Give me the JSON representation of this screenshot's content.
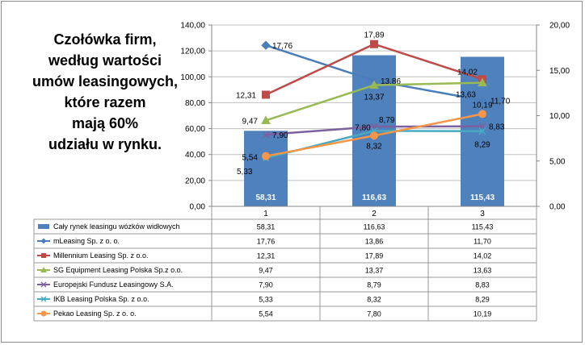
{
  "title_lines": [
    "Czołówka  firm,",
    "według wartości",
    "umów leasingowych,",
    "które razem",
    "mają 60%",
    "udziału w rynku."
  ],
  "chart_data": {
    "type": "bar",
    "categories": [
      "1",
      "2",
      "3"
    ],
    "y_left": {
      "ylim": [
        0,
        140
      ],
      "ticks": [
        "0,00",
        "20,00",
        "40,00",
        "60,00",
        "80,00",
        "100,00",
        "120,00",
        "140,00"
      ]
    },
    "y_right": {
      "ylim": [
        0,
        20
      ],
      "ticks": [
        "0,00",
        "5,00",
        "10,00",
        "15,00",
        "20,00"
      ]
    },
    "bar_series": {
      "name": "Cały rynek leasingu wózków widłowych",
      "axis": "left",
      "values": [
        58.31,
        116.63,
        115.43
      ],
      "labels": [
        "58,31",
        "116,63",
        "115,43"
      ],
      "color": "#4f81bd"
    },
    "series": [
      {
        "name": "mLeasing Sp. z o. o.",
        "axis": "right",
        "marker": "diamond",
        "color": "#4a7ebb",
        "values": [
          17.76,
          13.86,
          11.7
        ],
        "labels": [
          "17,76",
          "13,86",
          "11,70"
        ]
      },
      {
        "name": "Millennium Leasing Sp. z o.o.",
        "axis": "right",
        "marker": "square",
        "color": "#be4b48",
        "values": [
          12.31,
          17.89,
          14.02
        ],
        "labels": [
          "12,31",
          "17,89",
          "14,02"
        ]
      },
      {
        "name": "SG Equipment Leasing Polska Sp.z o.o.",
        "axis": "right",
        "marker": "triangle",
        "color": "#98b954",
        "values": [
          9.47,
          13.37,
          13.63
        ],
        "labels": [
          "9,47",
          "13,37",
          "13,63"
        ]
      },
      {
        "name": "Europejski Fundusz Leasingowy S.A.",
        "axis": "right",
        "marker": "x",
        "color": "#7d60a0",
        "values": [
          7.9,
          8.79,
          8.83
        ],
        "labels": [
          "7,90",
          "8,79",
          "8,83"
        ]
      },
      {
        "name": "IKB Leasing Polska Sp. z o.o.",
        "axis": "right",
        "marker": "x",
        "color": "#46aac5",
        "values": [
          5.33,
          8.32,
          8.29
        ],
        "labels": [
          "5,33",
          "8,32",
          "8,29"
        ]
      },
      {
        "name": "Pekao Leasing Sp. z o. o.",
        "axis": "right",
        "marker": "circle",
        "color": "#f79646",
        "values": [
          5.54,
          7.8,
          10.19
        ],
        "labels": [
          "5,54",
          "7,80",
          "10,19"
        ]
      }
    ],
    "grid": true,
    "legend": "data-table-below"
  }
}
